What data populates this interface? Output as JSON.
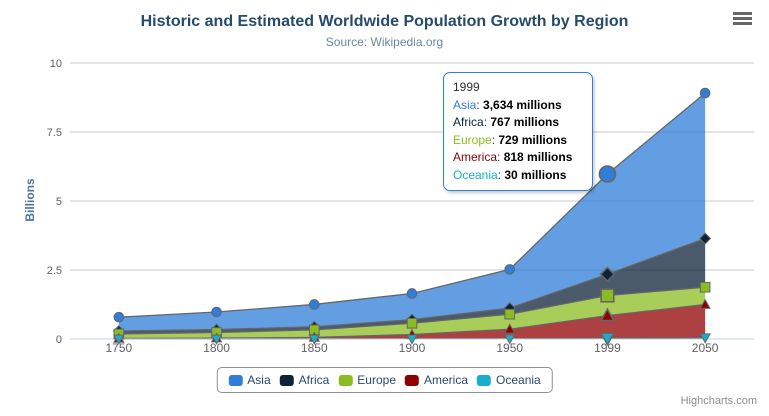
{
  "chart_data": {
    "type": "area",
    "stacking": "normal",
    "title": "Historic and Estimated Worldwide Population Growth by Region",
    "subtitle": "Source: Wikipedia.org",
    "categories": [
      "1750",
      "1800",
      "1850",
      "1900",
      "1950",
      "1999",
      "2050"
    ],
    "xlabel": "",
    "ylabel": "Billions",
    "ylim": [
      0,
      10
    ],
    "yticks": [
      0,
      2.5,
      5,
      7.5,
      10
    ],
    "grid": true,
    "legend_position": "bottom",
    "values_unit": "millions",
    "hover_index": 5,
    "series": [
      {
        "name": "Asia",
        "color": "#2f7ed8",
        "marker": "circle",
        "values": [
          502,
          635,
          809,
          947,
          1402,
          3634,
          5268
        ]
      },
      {
        "name": "Africa",
        "color": "#0d233a",
        "marker": "diamond",
        "values": [
          106,
          107,
          111,
          133,
          221,
          767,
          1766
        ]
      },
      {
        "name": "Europe",
        "color": "#8bbc21",
        "marker": "square",
        "values": [
          163,
          203,
          276,
          408,
          547,
          729,
          628
        ]
      },
      {
        "name": "America",
        "color": "#910000",
        "marker": "triangle",
        "values": [
          18,
          31,
          54,
          156,
          339,
          818,
          1201
        ]
      },
      {
        "name": "Oceania",
        "color": "#1aadce",
        "marker": "triangle-down",
        "values": [
          2,
          2,
          2,
          6,
          13,
          30,
          46
        ]
      }
    ]
  },
  "tooltip": {
    "header": "1999",
    "rows": [
      {
        "name": "Asia",
        "color": "#2f7ed8",
        "value": "3,634 millions"
      },
      {
        "name": "Africa",
        "color": "#0d233a",
        "value": "767 millions"
      },
      {
        "name": "Europe",
        "color": "#8bbc21",
        "value": "729 millions"
      },
      {
        "name": "America",
        "color": "#910000",
        "value": "818 millions"
      },
      {
        "name": "Oceania",
        "color": "#1aadce",
        "value": "30 millions"
      }
    ]
  },
  "credits": {
    "label": "Highcharts.com"
  },
  "colors": {
    "title_text": "#274b6d",
    "subtitle_text": "#6d869f",
    "y_title_text": "#4d759e",
    "axis_label": "#606060",
    "grid_line": "#c8c8c8",
    "x_axis_line": "#c0d0e0",
    "series_outline": "#666666",
    "tooltip_border": "#2f7ed8",
    "legend_border": "#909090",
    "legend_text": "#274b6d",
    "fill_opacity": 0.75
  }
}
